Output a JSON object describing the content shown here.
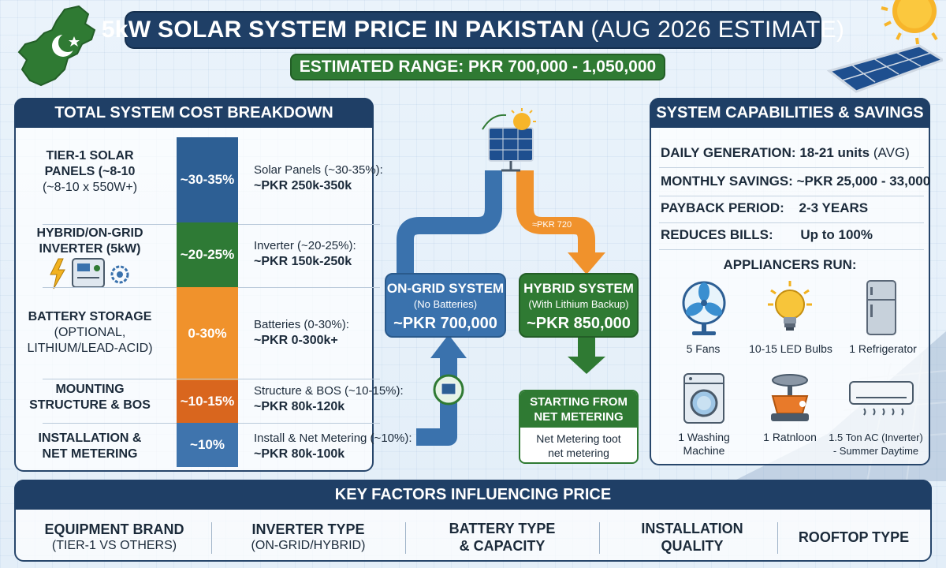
{
  "header": {
    "title": "5kW SOLAR SYSTEM PRICE IN PAKISTAN",
    "title_suffix": "(AUG 2026 ESTIMATE)",
    "range": "ESTIMATED RANGE: PKR 700,000 - 1,050,000"
  },
  "cost_breakdown": {
    "heading": "TOTAL SYSTEM COST BREAKDOWN",
    "rows": [
      {
        "label_lines": [
          "TIER-1 SOLAR",
          "PANELS (~8-10",
          "(~8-10 x 550W+)"
        ],
        "share": "~30-35%",
        "desc": "Solar Panels (~30-35%):",
        "price": "~PKR 250k-350k",
        "color": "#2d5f94"
      },
      {
        "label_lines": [
          "HYBRID/ON-GRID",
          "INVERTER (5kW)"
        ],
        "share": "~20-25%",
        "desc": "Inverter (~20-25%):",
        "price": "~PKR 150k-250k",
        "color": "#2e7a35"
      },
      {
        "label_lines": [
          "BATTERY STORAGE",
          "(OPTIONAL,",
          "LITHIUM/LEAD-ACID)"
        ],
        "share": "0-30%",
        "desc": "Batteries (0-30%):",
        "price": "~PKR 0-300k+",
        "color": "#f0922c"
      },
      {
        "label_lines": [
          "MOUNTING",
          "STRUCTURE & BOS"
        ],
        "share": "~10-15%",
        "desc": "Structure & BOS (~10-15%):",
        "price": "~PKR 80k-120k",
        "color": "#d9661e"
      },
      {
        "label_lines": [
          "INSTALLATION &",
          "NET METERING"
        ],
        "share": "~10%",
        "desc": "Install & Net Metering (~10%):",
        "price": "~PKR 80k-100k",
        "color": "#3f74ad"
      }
    ]
  },
  "flow": {
    "arrow_label": "≈PKR 720",
    "on_grid": {
      "title": "ON-GRID SYSTEM",
      "sub": "(No Batteries)",
      "price": "~PKR 700,000"
    },
    "hybrid": {
      "title": "HYBRID SYSTEM",
      "sub": "(With Lithium Backup)",
      "price": "~PKR 850,000"
    },
    "net_metering": {
      "title_lines": [
        "STARTING FROM",
        "NET METERING"
      ],
      "note_lines": [
        "Net Metering toot",
        "net metering"
      ]
    },
    "colors": {
      "blue": "#3a72ad",
      "orange": "#f0922c",
      "green": "#2f7a33"
    }
  },
  "capabilities": {
    "heading": "SYSTEM CAPABILITIES & SAVINGS",
    "rows": [
      {
        "key": "DAILY GENERATION:",
        "value": "18-21 units",
        "suffix": "(AVG)"
      },
      {
        "key": "MONTHLY SAVINGS:",
        "value": "~PKR 25,000 - 33,000",
        "suffix": ""
      },
      {
        "key": "PAYBACK PERIOD:",
        "value": "2-3 YEARS",
        "suffix": ""
      },
      {
        "key": "REDUCES BILLS:",
        "value": "Up to 100%",
        "suffix": ""
      }
    ],
    "appliances_heading": "APPLIANCERS RUN:",
    "appliances": [
      {
        "icon": "fan-icon",
        "label_lines": [
          "5 Fans"
        ]
      },
      {
        "icon": "bulb-icon",
        "label_lines": [
          "10-15 LED Bulbs"
        ]
      },
      {
        "icon": "refrigerator-icon",
        "label_lines": [
          "1 Refrigerator"
        ]
      },
      {
        "icon": "washing-machine-icon",
        "label_lines": [
          "1 Washing",
          "Machine"
        ]
      },
      {
        "icon": "mixer-icon",
        "label_lines": [
          "1 Ratnloon"
        ]
      },
      {
        "icon": "air-conditioner-icon",
        "label_lines": [
          "1.5 Ton AC (Inverter)",
          "- Summer Daytime"
        ]
      }
    ]
  },
  "factors": {
    "heading": "KEY FACTORS INFLUENCING PRICE",
    "items": [
      {
        "title_lines": [
          "EQUIPMENT BRAND"
        ],
        "sub": "(TIER-1 VS OTHERS)"
      },
      {
        "title_lines": [
          "INVERTER TYPE"
        ],
        "sub": "(ON-GRID/HYBRID)"
      },
      {
        "title_lines": [
          "BATTERY TYPE",
          "& CAPACITY"
        ],
        "sub": ""
      },
      {
        "title_lines": [
          "INSTALLATION",
          "QUALITY"
        ],
        "sub": ""
      },
      {
        "title_lines": [
          "ROOFTOP TYPE"
        ],
        "sub": ""
      }
    ]
  }
}
